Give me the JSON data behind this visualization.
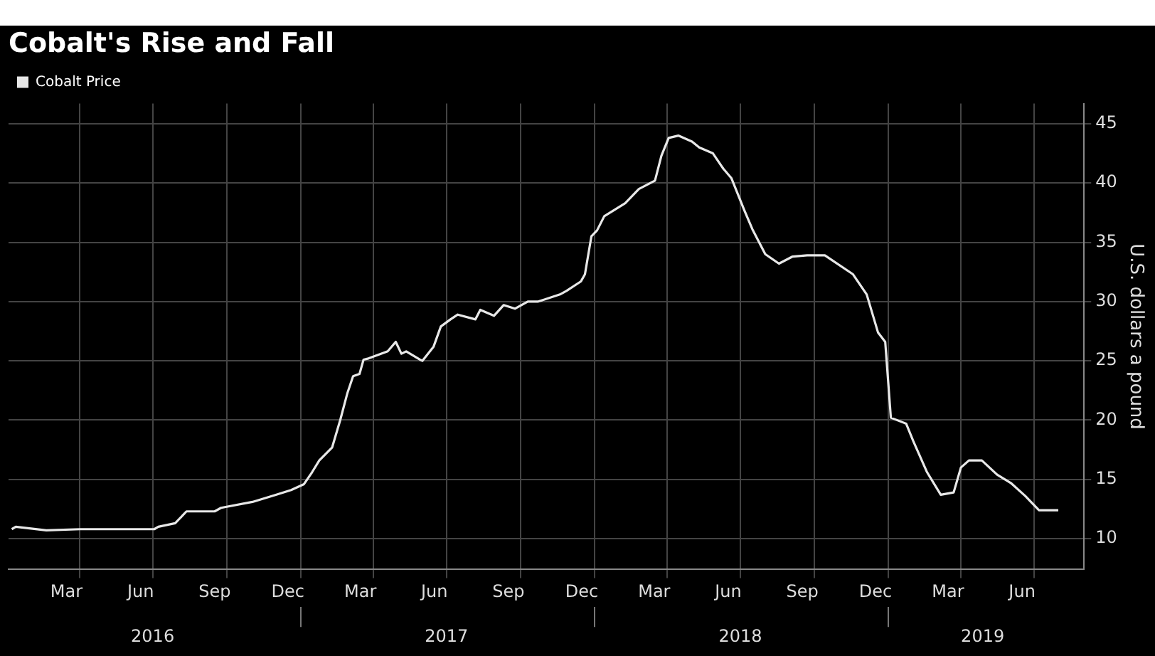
{
  "chart_data": {
    "type": "line",
    "title": "Cobalt's Rise and Fall",
    "ylabel": "U.S. dollars a pound",
    "x": [
      "2016-01-08",
      "2016-01-13",
      "2016-02-20",
      "2016-04-02",
      "2016-07-03",
      "2016-07-08",
      "2016-07-29",
      "2016-08-12",
      "2016-09-16",
      "2016-09-24",
      "2016-11-02",
      "2016-12-01",
      "2016-12-20",
      "2017-01-05",
      "2017-01-15",
      "2017-01-24",
      "2017-02-09",
      "2017-02-19",
      "2017-02-28",
      "2017-03-07",
      "2017-03-15",
      "2017-03-20",
      "2017-03-26",
      "2017-04-19",
      "2017-04-29",
      "2017-05-06",
      "2017-05-12",
      "2017-05-29",
      "2017-06-01",
      "2017-06-15",
      "2017-06-24",
      "2017-07-06",
      "2017-07-15",
      "2017-08-06",
      "2017-08-12",
      "2017-08-29",
      "2017-09-10",
      "2017-09-24",
      "2017-10-10",
      "2017-10-23",
      "2017-11-19",
      "2017-11-27",
      "2017-12-15",
      "2017-12-20",
      "2017-12-28",
      "2018-01-04",
      "2018-01-13",
      "2018-02-08",
      "2018-02-25",
      "2018-03-17",
      "2018-03-25",
      "2018-04-03",
      "2018-04-15",
      "2018-05-02",
      "2018-05-11",
      "2018-05-28",
      "2018-06-10",
      "2018-06-20",
      "2018-07-06",
      "2018-07-16",
      "2018-08-01",
      "2018-08-18",
      "2018-09-04",
      "2018-09-22",
      "2018-10-14",
      "2018-11-18",
      "2018-12-05",
      "2018-12-19",
      "2018-12-28",
      "2019-01-04",
      "2019-01-23",
      "2019-02-01",
      "2019-02-18",
      "2019-03-07",
      "2019-03-23",
      "2019-04-01",
      "2019-04-11",
      "2019-04-27",
      "2019-05-16",
      "2019-06-02",
      "2019-06-20",
      "2019-07-07",
      "2019-07-31"
    ],
    "series": [
      {
        "name": "Cobalt Price",
        "color": "#e8e8e8",
        "values": [
          10.8,
          11.0,
          10.7,
          10.8,
          10.8,
          11.0,
          11.3,
          12.3,
          12.3,
          12.6,
          13.1,
          13.7,
          14.1,
          14.6,
          15.6,
          16.6,
          17.7,
          20.0,
          22.3,
          23.7,
          23.9,
          25.1,
          25.2,
          25.8,
          26.6,
          25.6,
          25.8,
          25.1,
          25.0,
          26.2,
          27.9,
          28.5,
          28.9,
          28.5,
          29.3,
          28.8,
          29.7,
          29.4,
          30.0,
          30.0,
          30.6,
          30.9,
          31.7,
          32.3,
          35.5,
          36.0,
          37.2,
          38.3,
          39.5,
          40.2,
          42.3,
          43.8,
          44.0,
          43.5,
          43.0,
          42.5,
          41.2,
          40.4,
          37.7,
          36.1,
          34.0,
          33.2,
          33.8,
          33.9,
          33.9,
          32.3,
          30.6,
          27.4,
          26.6,
          20.2,
          19.7,
          18.2,
          15.6,
          13.7,
          13.9,
          16.0,
          16.6,
          16.6,
          15.4,
          14.7,
          13.6,
          12.4,
          12.4
        ]
      }
    ],
    "xlim": [
      "2016-01-04",
      "2019-09-01"
    ],
    "xticks": [
      {
        "value": "2016-03-16",
        "label": "Mar"
      },
      {
        "value": "2016-04-01",
        "label": null
      },
      {
        "value": "2016-06-16",
        "label": "Jun"
      },
      {
        "value": "2016-07-01",
        "label": null
      },
      {
        "value": "2016-09-16",
        "label": "Sep"
      },
      {
        "value": "2016-10-01",
        "label": null
      },
      {
        "value": "2016-12-16",
        "label": "Dec"
      },
      {
        "value": "2017-01-01",
        "label": null
      },
      {
        "value": "2017-03-16",
        "label": "Mar"
      },
      {
        "value": "2017-04-01",
        "label": null
      },
      {
        "value": "2017-06-16",
        "label": "Jun"
      },
      {
        "value": "2017-07-01",
        "label": null
      },
      {
        "value": "2017-09-16",
        "label": "Sep"
      },
      {
        "value": "2017-10-01",
        "label": null
      },
      {
        "value": "2017-12-16",
        "label": "Dec"
      },
      {
        "value": "2018-01-01",
        "label": null
      },
      {
        "value": "2018-03-16",
        "label": "Mar"
      },
      {
        "value": "2018-04-01",
        "label": null
      },
      {
        "value": "2018-06-16",
        "label": "Jun"
      },
      {
        "value": "2018-07-01",
        "label": null
      },
      {
        "value": "2018-09-16",
        "label": "Sep"
      },
      {
        "value": "2018-10-01",
        "label": null
      },
      {
        "value": "2018-12-16",
        "label": "Dec"
      },
      {
        "value": "2019-01-01",
        "label": null
      },
      {
        "value": "2019-03-16",
        "label": "Mar"
      },
      {
        "value": "2019-04-01",
        "label": null
      },
      {
        "value": "2019-06-16",
        "label": "Jun"
      },
      {
        "value": "2019-07-01",
        "label": null
      }
    ],
    "x2lim": [
      "2016-01-04",
      "2019-09-01"
    ],
    "x2ticks": [
      {
        "value": "2016-07-01",
        "label": "2016"
      },
      {
        "value": "2017-01-01",
        "label": null
      },
      {
        "value": "2017-07-01",
        "label": "2017"
      },
      {
        "value": "2018-01-01",
        "label": null
      },
      {
        "value": "2018-07-01",
        "label": "2018"
      },
      {
        "value": "2019-01-01",
        "label": null
      },
      {
        "value": "2019-04-28",
        "label": "2019"
      }
    ],
    "ylim": [
      7.4,
      46.7
    ],
    "yticks": [
      10,
      15,
      20,
      25,
      30,
      35,
      40,
      45
    ],
    "grid": true,
    "legend": "top left",
    "marker": "none",
    "line_style": "solid"
  }
}
